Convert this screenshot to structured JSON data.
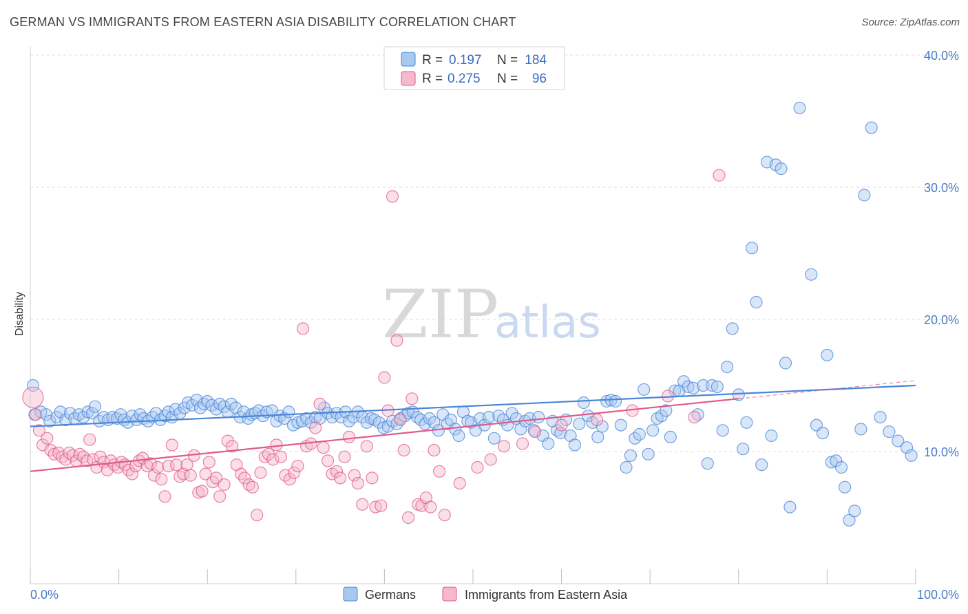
{
  "header": {
    "title": "GERMAN VS IMMIGRANTS FROM EASTERN ASIA DISABILITY CORRELATION CHART",
    "source": "Source: ZipAtlas.com"
  },
  "legend": {
    "r_label": "R =",
    "n_label": "N =",
    "rows": [
      {
        "r": "0.197",
        "n": "184",
        "color": "#a8c8f0"
      },
      {
        "r": "0.275",
        "n": "96",
        "color": "#f5b8cc"
      }
    ]
  },
  "watermark": {
    "zip": "ZIP",
    "atlas": "atlas"
  },
  "chart_data": {
    "type": "scatter",
    "ylabel": "Disability",
    "xlim": [
      0,
      100
    ],
    "ylim": [
      0,
      40
    ],
    "x_tick_labels": [
      "0.0%",
      "100.0%"
    ],
    "y_ticks": [
      10,
      20,
      30,
      40
    ],
    "y_tick_labels": [
      "10.0%",
      "20.0%",
      "30.0%",
      "40.0%"
    ],
    "grid": "horizontal dashed",
    "legend_position": "top-center",
    "series": [
      {
        "name": "Germans",
        "color": "#4a86d8",
        "fill": "#a8c8f0",
        "trend": {
          "x0": 0,
          "y0": 11.9,
          "x1": 100,
          "y1": 15.0
        },
        "points": [
          [
            0.3,
            15.0
          ],
          [
            0.5,
            12.8
          ],
          [
            1.2,
            13.0
          ],
          [
            1.8,
            12.8
          ],
          [
            2.2,
            12.3
          ],
          [
            3.0,
            12.6
          ],
          [
            3.4,
            13.0
          ],
          [
            4.0,
            12.4
          ],
          [
            4.5,
            12.9
          ],
          [
            5.0,
            12.5
          ],
          [
            5.5,
            12.8
          ],
          [
            6.0,
            12.6
          ],
          [
            6.5,
            13.0
          ],
          [
            7.0,
            12.9
          ],
          [
            7.3,
            13.4
          ],
          [
            7.8,
            12.3
          ],
          [
            8.3,
            12.6
          ],
          [
            8.8,
            12.4
          ],
          [
            9.3,
            12.6
          ],
          [
            9.8,
            12.5
          ],
          [
            10.2,
            12.8
          ],
          [
            10.6,
            12.4
          ],
          [
            11.0,
            12.2
          ],
          [
            11.5,
            12.7
          ],
          [
            12.0,
            12.4
          ],
          [
            12.4,
            12.8
          ],
          [
            12.8,
            12.5
          ],
          [
            13.3,
            12.3
          ],
          [
            13.8,
            12.6
          ],
          [
            14.2,
            12.9
          ],
          [
            14.7,
            12.4
          ],
          [
            15.2,
            12.7
          ],
          [
            15.6,
            13.0
          ],
          [
            16.0,
            12.6
          ],
          [
            16.4,
            13.2
          ],
          [
            16.9,
            12.9
          ],
          [
            17.4,
            13.3
          ],
          [
            17.8,
            13.7
          ],
          [
            18.3,
            13.5
          ],
          [
            18.8,
            13.9
          ],
          [
            19.2,
            13.3
          ],
          [
            19.6,
            13.6
          ],
          [
            20.0,
            13.8
          ],
          [
            20.5,
            13.5
          ],
          [
            21.0,
            13.2
          ],
          [
            21.4,
            13.6
          ],
          [
            21.9,
            13.4
          ],
          [
            22.3,
            13.0
          ],
          [
            22.7,
            13.6
          ],
          [
            23.2,
            13.3
          ],
          [
            23.7,
            12.6
          ],
          [
            24.1,
            13.0
          ],
          [
            24.6,
            12.5
          ],
          [
            25.0,
            12.8
          ],
          [
            25.4,
            12.9
          ],
          [
            25.8,
            13.1
          ],
          [
            26.3,
            12.7
          ],
          [
            26.7,
            13.0
          ],
          [
            27.3,
            13.1
          ],
          [
            27.8,
            12.3
          ],
          [
            28.2,
            12.7
          ],
          [
            28.7,
            12.5
          ],
          [
            29.2,
            13.0
          ],
          [
            29.7,
            12.0
          ],
          [
            30.2,
            12.2
          ],
          [
            30.7,
            12.3
          ],
          [
            31.2,
            12.5
          ],
          [
            31.7,
            12.2
          ],
          [
            32.2,
            12.6
          ],
          [
            32.7,
            12.5
          ],
          [
            33.2,
            13.3
          ],
          [
            33.6,
            12.9
          ],
          [
            34.1,
            12.6
          ],
          [
            34.6,
            12.9
          ],
          [
            35.1,
            12.6
          ],
          [
            35.6,
            13.0
          ],
          [
            36.0,
            12.3
          ],
          [
            36.5,
            12.6
          ],
          [
            37.0,
            13.0
          ],
          [
            37.5,
            12.6
          ],
          [
            38.0,
            12.2
          ],
          [
            38.5,
            12.5
          ],
          [
            38.9,
            12.4
          ],
          [
            39.4,
            12.2
          ],
          [
            39.9,
            11.8
          ],
          [
            40.4,
            11.9
          ],
          [
            40.9,
            12.3
          ],
          [
            41.4,
            12.1
          ],
          [
            41.8,
            12.5
          ],
          [
            42.3,
            12.7
          ],
          [
            42.7,
            12.9
          ],
          [
            43.2,
            13.0
          ],
          [
            43.7,
            12.6
          ],
          [
            44.1,
            12.4
          ],
          [
            44.6,
            12.1
          ],
          [
            45.1,
            12.5
          ],
          [
            45.6,
            12.2
          ],
          [
            46.1,
            11.6
          ],
          [
            46.6,
            12.8
          ],
          [
            47.1,
            12.1
          ],
          [
            47.5,
            12.4
          ],
          [
            48.0,
            11.7
          ],
          [
            48.4,
            11.2
          ],
          [
            48.9,
            13.0
          ],
          [
            49.4,
            12.3
          ],
          [
            49.8,
            12.2
          ],
          [
            50.3,
            11.6
          ],
          [
            50.8,
            12.5
          ],
          [
            51.3,
            12.0
          ],
          [
            51.8,
            12.6
          ],
          [
            52.4,
            11.0
          ],
          [
            52.9,
            12.7
          ],
          [
            53.4,
            12.4
          ],
          [
            53.9,
            12.0
          ],
          [
            54.4,
            12.9
          ],
          [
            54.9,
            12.5
          ],
          [
            55.4,
            11.7
          ],
          [
            55.9,
            12.3
          ],
          [
            56.4,
            12.5
          ],
          [
            56.9,
            11.6
          ],
          [
            57.4,
            12.6
          ],
          [
            57.9,
            11.2
          ],
          [
            58.5,
            10.6
          ],
          [
            59.0,
            12.3
          ],
          [
            59.5,
            11.6
          ],
          [
            59.9,
            11.4
          ],
          [
            60.5,
            12.4
          ],
          [
            61.0,
            11.2
          ],
          [
            61.5,
            10.5
          ],
          [
            62.0,
            12.1
          ],
          [
            62.5,
            13.7
          ],
          [
            63.0,
            12.7
          ],
          [
            63.5,
            12.2
          ],
          [
            64.1,
            11.1
          ],
          [
            64.6,
            11.9
          ],
          [
            65.1,
            13.8
          ],
          [
            65.6,
            13.9
          ],
          [
            66.1,
            13.8
          ],
          [
            66.7,
            12.0
          ],
          [
            67.3,
            8.8
          ],
          [
            67.8,
            9.7
          ],
          [
            68.3,
            11.0
          ],
          [
            68.8,
            11.3
          ],
          [
            69.3,
            14.7
          ],
          [
            69.8,
            9.8
          ],
          [
            70.3,
            11.6
          ],
          [
            70.8,
            12.5
          ],
          [
            71.3,
            12.7
          ],
          [
            71.8,
            13.1
          ],
          [
            72.3,
            11.1
          ],
          [
            72.8,
            14.6
          ],
          [
            73.3,
            14.6
          ],
          [
            73.8,
            15.3
          ],
          [
            74.3,
            14.9
          ],
          [
            74.9,
            14.8
          ],
          [
            75.4,
            12.8
          ],
          [
            76.0,
            15.0
          ],
          [
            76.5,
            9.1
          ],
          [
            77.0,
            15.0
          ],
          [
            77.6,
            14.9
          ],
          [
            78.2,
            11.6
          ],
          [
            78.7,
            16.4
          ],
          [
            79.3,
            19.3
          ],
          [
            80.0,
            14.3
          ],
          [
            80.5,
            10.2
          ],
          [
            80.9,
            12.2
          ],
          [
            81.5,
            25.4
          ],
          [
            82.0,
            21.3
          ],
          [
            82.6,
            9.0
          ],
          [
            83.2,
            31.9
          ],
          [
            83.7,
            11.2
          ],
          [
            84.2,
            31.7
          ],
          [
            84.8,
            31.4
          ],
          [
            85.3,
            16.7
          ],
          [
            85.8,
            5.8
          ],
          [
            86.9,
            36.0
          ],
          [
            88.2,
            23.4
          ],
          [
            88.8,
            12.0
          ],
          [
            89.5,
            11.4
          ],
          [
            90.0,
            17.3
          ],
          [
            90.5,
            9.2
          ],
          [
            91.0,
            9.3
          ],
          [
            91.6,
            8.8
          ],
          [
            92.0,
            7.3
          ],
          [
            92.5,
            4.8
          ],
          [
            93.1,
            5.5
          ],
          [
            93.8,
            11.7
          ],
          [
            94.2,
            29.4
          ],
          [
            95.0,
            34.5
          ],
          [
            96.0,
            12.6
          ],
          [
            97.0,
            11.5
          ],
          [
            98.0,
            10.8
          ],
          [
            99.0,
            10.3
          ],
          [
            99.5,
            9.7
          ]
        ]
      },
      {
        "name": "Immigrants from Eastern Asia",
        "color": "#e05a8a",
        "fill": "#f5b8cc",
        "trend": {
          "x0": 0,
          "y0": 8.5,
          "x1": 80,
          "y1": 14.0
        },
        "points": [
          [
            0.3,
            14.1
          ],
          [
            0.6,
            12.8
          ],
          [
            1.0,
            11.6
          ],
          [
            1.4,
            10.5
          ],
          [
            1.9,
            11.0
          ],
          [
            2.3,
            10.1
          ],
          [
            2.7,
            9.8
          ],
          [
            3.2,
            9.9
          ],
          [
            3.6,
            9.6
          ],
          [
            4.0,
            9.4
          ],
          [
            4.4,
            9.9
          ],
          [
            4.8,
            9.7
          ],
          [
            5.2,
            9.3
          ],
          [
            5.6,
            9.8
          ],
          [
            6.0,
            9.6
          ],
          [
            6.4,
            9.3
          ],
          [
            6.7,
            10.9
          ],
          [
            7.1,
            9.4
          ],
          [
            7.5,
            8.8
          ],
          [
            7.9,
            9.6
          ],
          [
            8.3,
            9.2
          ],
          [
            8.7,
            8.6
          ],
          [
            9.1,
            9.3
          ],
          [
            9.5,
            9.0
          ],
          [
            9.9,
            8.8
          ],
          [
            10.3,
            9.2
          ],
          [
            10.7,
            9.0
          ],
          [
            11.1,
            8.6
          ],
          [
            11.5,
            8.3
          ],
          [
            11.9,
            8.9
          ],
          [
            12.3,
            9.3
          ],
          [
            12.7,
            9.5
          ],
          [
            13.2,
            8.9
          ],
          [
            13.6,
            9.1
          ],
          [
            14.0,
            8.2
          ],
          [
            14.4,
            8.8
          ],
          [
            14.8,
            7.9
          ],
          [
            15.2,
            6.6
          ],
          [
            15.6,
            8.9
          ],
          [
            16.0,
            10.5
          ],
          [
            16.5,
            9.0
          ],
          [
            16.9,
            8.1
          ],
          [
            17.3,
            8.3
          ],
          [
            17.7,
            9.0
          ],
          [
            18.1,
            8.2
          ],
          [
            18.5,
            9.7
          ],
          [
            19.0,
            6.9
          ],
          [
            19.4,
            7.0
          ],
          [
            19.8,
            8.3
          ],
          [
            20.2,
            9.2
          ],
          [
            20.6,
            7.7
          ],
          [
            21.0,
            8.0
          ],
          [
            21.4,
            6.6
          ],
          [
            21.9,
            7.5
          ],
          [
            22.3,
            10.8
          ],
          [
            22.8,
            10.4
          ],
          [
            23.3,
            9.0
          ],
          [
            23.8,
            8.3
          ],
          [
            24.2,
            8.0
          ],
          [
            24.7,
            7.5
          ],
          [
            25.1,
            7.3
          ],
          [
            25.6,
            5.2
          ],
          [
            26.0,
            8.4
          ],
          [
            26.5,
            9.6
          ],
          [
            26.9,
            9.8
          ],
          [
            27.4,
            9.4
          ],
          [
            27.8,
            10.5
          ],
          [
            28.3,
            9.6
          ],
          [
            28.8,
            8.2
          ],
          [
            29.3,
            7.9
          ],
          [
            29.8,
            8.4
          ],
          [
            30.2,
            8.9
          ],
          [
            30.8,
            19.3
          ],
          [
            31.2,
            10.4
          ],
          [
            31.7,
            10.6
          ],
          [
            32.2,
            11.8
          ],
          [
            32.7,
            13.6
          ],
          [
            33.1,
            10.3
          ],
          [
            33.6,
            9.3
          ],
          [
            34.1,
            8.3
          ],
          [
            34.6,
            8.5
          ],
          [
            35.0,
            8.0
          ],
          [
            35.5,
            9.6
          ],
          [
            36.0,
            11.1
          ],
          [
            36.6,
            8.2
          ],
          [
            37.0,
            7.6
          ],
          [
            37.5,
            6.0
          ],
          [
            38.0,
            10.4
          ],
          [
            38.6,
            8.0
          ],
          [
            39.0,
            5.8
          ],
          [
            39.6,
            5.9
          ],
          [
            40.0,
            15.6
          ],
          [
            40.4,
            13.1
          ],
          [
            40.9,
            29.3
          ],
          [
            41.4,
            18.4
          ],
          [
            41.8,
            12.4
          ],
          [
            42.2,
            10.1
          ],
          [
            42.7,
            5.0
          ],
          [
            43.1,
            14.0
          ],
          [
            43.8,
            6.0
          ],
          [
            44.2,
            5.9
          ],
          [
            44.7,
            6.5
          ],
          [
            45.2,
            5.8
          ],
          [
            45.6,
            10.1
          ],
          [
            46.2,
            8.5
          ],
          [
            46.8,
            5.2
          ],
          [
            48.5,
            7.6
          ],
          [
            50.5,
            8.8
          ],
          [
            52.0,
            9.4
          ],
          [
            53.5,
            10.4
          ],
          [
            55.6,
            10.6
          ],
          [
            57.0,
            11.5
          ],
          [
            60.0,
            12.0
          ],
          [
            64.0,
            12.4
          ],
          [
            68.0,
            13.1
          ],
          [
            72.0,
            14.2
          ],
          [
            75.0,
            12.6
          ],
          [
            77.8,
            30.9
          ]
        ]
      }
    ]
  }
}
